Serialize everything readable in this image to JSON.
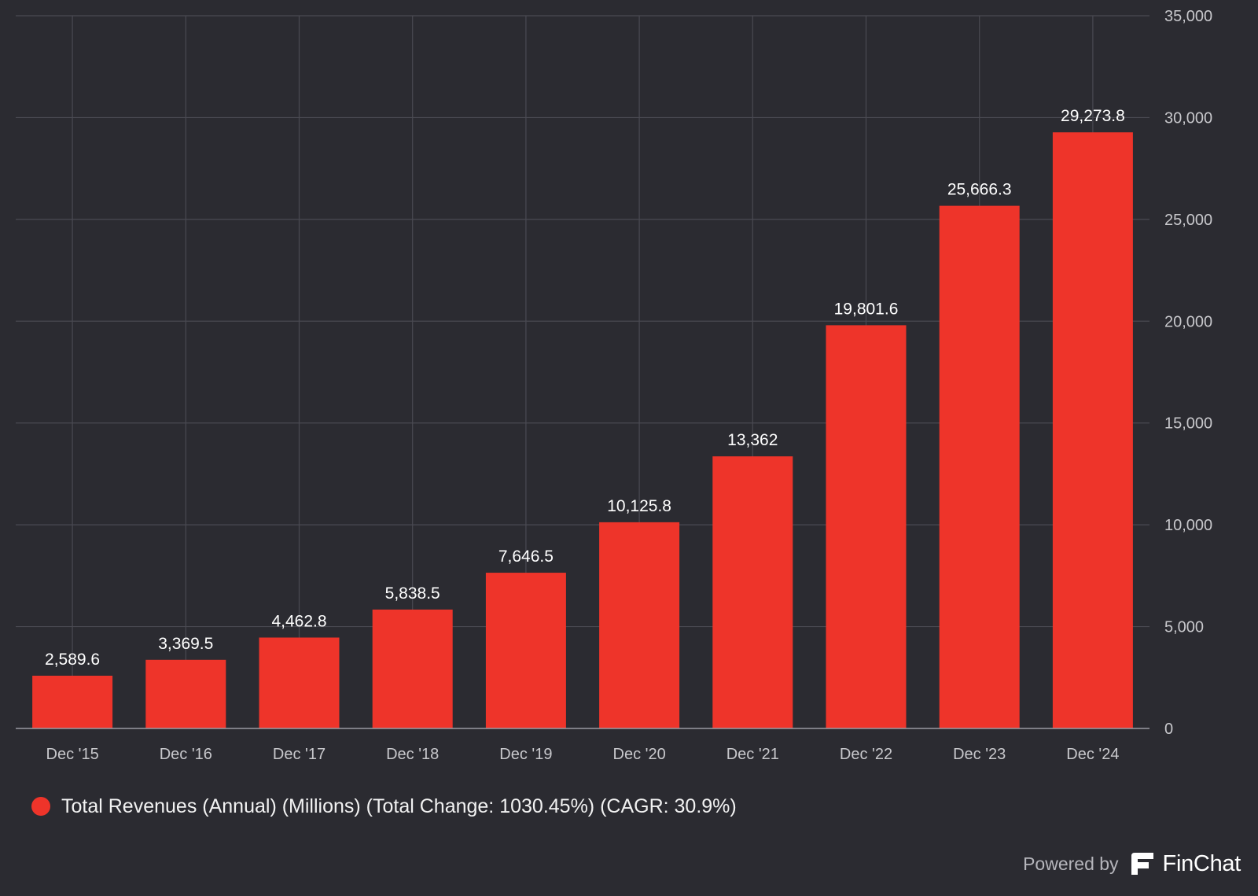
{
  "chart_data": {
    "type": "bar",
    "categories": [
      "Dec '15",
      "Dec '16",
      "Dec '17",
      "Dec '18",
      "Dec '19",
      "Dec '20",
      "Dec '21",
      "Dec '22",
      "Dec '23",
      "Dec '24"
    ],
    "series": [
      {
        "name": "Total Revenues (Annual) (Millions) (Total Change: 1030.45%) (CAGR: 30.9%)",
        "values": [
          2589.6,
          3369.5,
          4462.8,
          5838.5,
          7646.5,
          10125.8,
          13362,
          19801.6,
          25666.3,
          29273.8
        ],
        "data_labels": [
          "2,589.6",
          "3,369.5",
          "4,462.8",
          "5,838.5",
          "7,646.5",
          "10,125.8",
          "13,362",
          "19,801.6",
          "25,666.3",
          "29,273.8"
        ],
        "color": "#ee342a"
      }
    ],
    "ylim": [
      0,
      35000
    ],
    "y_ticks": [
      0,
      5000,
      10000,
      15000,
      20000,
      25000,
      30000,
      35000
    ],
    "y_tick_labels": [
      "0",
      "5,000",
      "10,000",
      "15,000",
      "20,000",
      "25,000",
      "30,000",
      "35,000"
    ],
    "y_axis_side": "right",
    "grid": true,
    "legend_position": "bottom-left"
  },
  "colors": {
    "background": "#2b2b31",
    "bar": "#ee342a",
    "grid": "#4a4a52",
    "tick_text": "#c8c8cc",
    "label_text": "#ffffff"
  },
  "footer": {
    "powered_by": "Powered by",
    "brand": "FinChat",
    "brand_icon": "finchat-logo-icon"
  }
}
